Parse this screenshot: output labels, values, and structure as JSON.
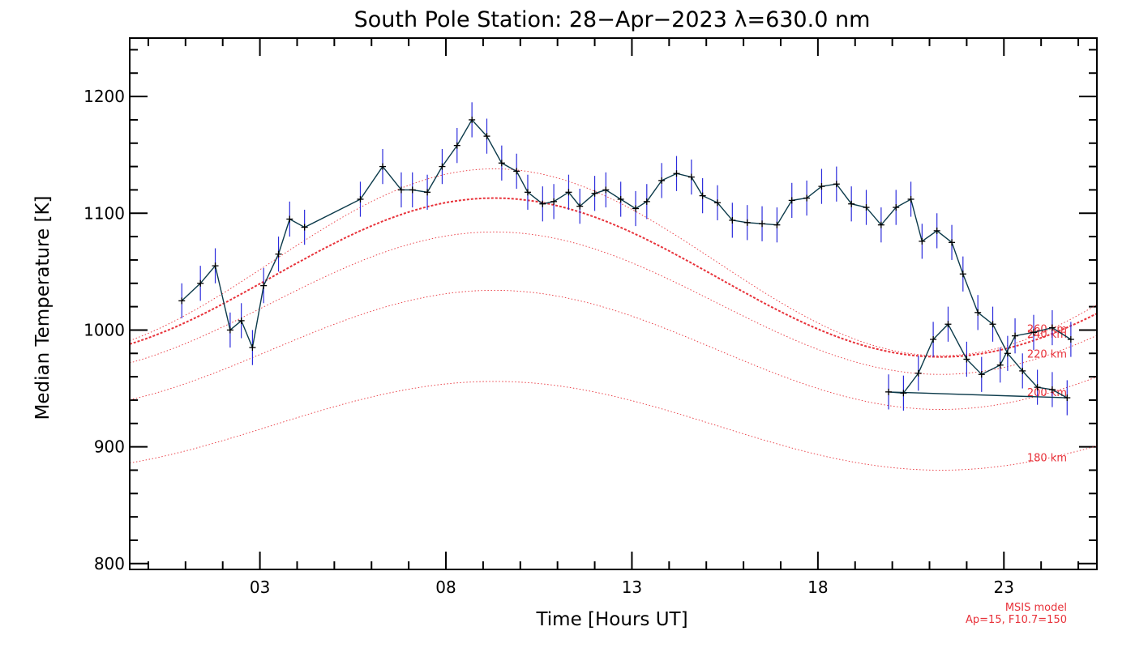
{
  "chart_data": {
    "type": "line",
    "title": "South Pole Station: 28−Apr−2023 λ=630.0 nm",
    "xlabel": "Time [Hours UT]",
    "ylabel": "Median Temperature [K]",
    "xlim": [
      -0.5,
      25.5
    ],
    "ylim": [
      795,
      1250
    ],
    "x_ticks": [
      3,
      8,
      13,
      18,
      23
    ],
    "x_tick_labels": [
      "03",
      "08",
      "13",
      "18",
      "23"
    ],
    "x_minor_step": 1,
    "y_ticks": [
      800,
      900,
      1000,
      1100,
      1200
    ],
    "y_tick_labels": [
      "800",
      "900",
      "1000",
      "1100",
      "1200"
    ],
    "y_minor_step": 20,
    "grid": false,
    "colors": {
      "line": "#0b3a4a",
      "errorbar": "#2c2cdc",
      "marker": "#000000",
      "model": "#e8323a"
    },
    "series": [
      {
        "x": [
          0.9,
          1.4,
          1.8,
          2.2,
          2.5,
          2.8,
          3.1,
          3.5,
          3.8,
          4.2,
          5.7,
          6.3,
          6.8,
          7.1,
          7.5,
          7.9,
          8.3,
          8.7,
          9.1,
          9.5,
          9.9,
          10.2,
          10.6,
          10.9,
          11.3,
          11.6,
          12.0,
          12.3,
          12.7,
          13.1,
          13.4,
          13.8,
          14.2,
          14.6,
          14.9,
          15.3,
          15.7,
          16.1,
          16.5,
          16.9,
          17.3,
          17.7,
          18.1,
          18.5,
          18.9,
          19.3,
          19.7,
          20.1,
          20.5,
          20.8,
          21.2,
          21.6,
          21.9,
          22.3,
          22.7,
          23.1,
          23.5,
          23.9,
          24.3,
          24.7
        ],
        "y": [
          1025,
          1040,
          1055,
          1000,
          1008,
          985,
          1038,
          1065,
          1095,
          1088,
          1112,
          1140,
          1120,
          1120,
          1118,
          1140,
          1158,
          1180,
          1166,
          1143,
          1136,
          1118,
          1108,
          1110,
          1118,
          1106,
          1117,
          1120,
          1112,
          1104,
          1110,
          1128,
          1134,
          1131,
          1115,
          1109,
          1094,
          1092,
          1091,
          1090,
          1111,
          1113,
          1123,
          1125,
          1108,
          1105,
          1090,
          1105,
          1112,
          1076,
          1085,
          1075,
          1048,
          1015,
          1005,
          980,
          965,
          951,
          949,
          942
        ],
        "yerr": 15
      }
    ],
    "series_tail": {
      "x": [
        19.9,
        20.3,
        20.7,
        21.1,
        21.5,
        22.0,
        22.4,
        22.9,
        23.3,
        23.8,
        24.3,
        24.8
      ],
      "y": [
        947,
        946,
        963,
        992,
        1005,
        975,
        962,
        970,
        995,
        998,
        1002,
        992
      ]
    },
    "tail_end": {
      "x": [
        25.1,
        25.5
      ],
      "y": [
        1009,
        1005
      ]
    },
    "model_curves": [
      {
        "label": "260 km",
        "mean": 1058,
        "amp": 80,
        "width": 0.9
      },
      {
        "label": "240 km",
        "mean": 1045,
        "amp": 68,
        "width": 2.0
      },
      {
        "label": "220 km",
        "mean": 1023,
        "amp": 61,
        "width": 0.9
      },
      {
        "label": "200 km",
        "mean": 983,
        "amp": 51,
        "width": 0.9
      },
      {
        "label": "180 km",
        "mean": 918,
        "amp": 38,
        "width": 0.9
      }
    ],
    "model_phase_hour": 9.3,
    "annotation": [
      "MSIS model",
      "Ap=15, F10.7=150"
    ]
  }
}
